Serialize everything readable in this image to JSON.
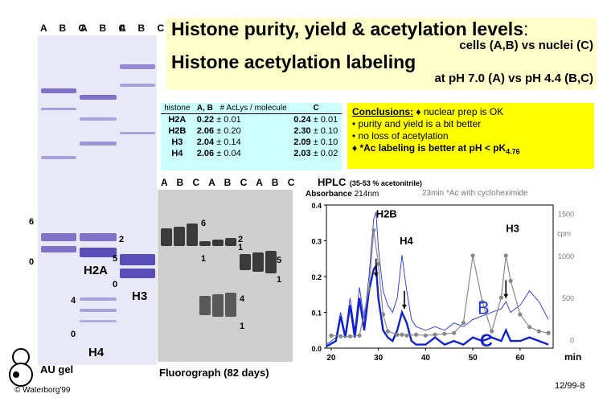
{
  "au_gel": {
    "lane_header_1": "A B C",
    "lane_header_2": "A B C",
    "lane_header_3": "A B C",
    "marks": [
      "6",
      "0",
      "2",
      "5",
      "0",
      "4",
      "0"
    ],
    "h2a": "H2A",
    "h3": "H3",
    "h4": "H4",
    "caption": "AU gel"
  },
  "copyright": "© Waterborg'99",
  "title": {
    "line1": "Histone purity, yield & acetylation levels",
    "colon": ":",
    "line2": "cells (A,B) vs nuclei (C)",
    "line3": "Histone acetylation labeling",
    "line4": "at pH 7.0 (A) vs pH 4.4 (B,C)"
  },
  "table": {
    "headers": [
      "histone",
      "A, B",
      "# AcLys / molecule",
      "C"
    ],
    "rows": [
      {
        "histone": "H2A",
        "ab": "0.22",
        "ab_err": "± 0.01",
        "c": "0.24",
        "c_err": "± 0.01"
      },
      {
        "histone": "H2B",
        "ab": "2.06",
        "ab_err": "± 0.20",
        "c": "2.30",
        "c_err": "± 0.10"
      },
      {
        "histone": "H3",
        "ab": "2.04",
        "ab_err": "± 0.14",
        "c": "2.09",
        "c_err": "± 0.10"
      },
      {
        "histone": "H4",
        "ab": "2.06",
        "ab_err": "± 0.04",
        "c": "2.03",
        "c_err": "± 0.02"
      }
    ]
  },
  "conclusions": {
    "heading": "Conclusions:",
    "lead": "♦  nuclear prep is OK",
    "items": [
      "•  purity and yield is a bit better",
      "•  no loss of acetylation",
      "♦  *Ac labeling is better at pH < pK"
    ],
    "subscript": "4.76"
  },
  "fluorograph": {
    "lane_header": "A B C A B C A B C",
    "marks": [
      "6",
      "2",
      "1",
      "1",
      "5",
      "1",
      "4",
      "1"
    ],
    "caption": "Fluorograph (82 days)"
  },
  "hplc": {
    "title": "HPLC",
    "subtitle": "(35-53 % acetonitrile)",
    "absorbance": "Absorbance",
    "nm": "214nm",
    "note": "23min *Ac with cycloheximide",
    "peak_h2b": "H2B",
    "peak_h4": "H4",
    "peak_h3": "H3",
    "curve_b": "B",
    "curve_c": "C",
    "unit_min": "min",
    "unit_cpm": "cpm",
    "y_ticks": [
      "0.4",
      "0.3",
      "0.2",
      "0.1",
      "0.0"
    ],
    "cpm_ticks": [
      "1500",
      "1000",
      "500",
      "0"
    ],
    "x_ticks": [
      "20",
      "30",
      "40",
      "50",
      "60"
    ]
  },
  "chart_data": {
    "type": "line",
    "xlabel": "min",
    "ylabel": "Absorbance 214nm",
    "xlim": [
      19,
      67
    ],
    "ylim": [
      0,
      0.4
    ],
    "y2lim": [
      -100,
      1600
    ],
    "series": [
      {
        "name": "B",
        "color": "#2233dd",
        "x": [
          19,
          21,
          22,
          23,
          24,
          25,
          26,
          27,
          28,
          29,
          29.5,
          30,
          31,
          32,
          33,
          34,
          35,
          36,
          37,
          38,
          40,
          42,
          44,
          46,
          48,
          50,
          52,
          54,
          56,
          57,
          58,
          60,
          62,
          64,
          66
        ],
        "y": [
          0.01,
          0.03,
          0.1,
          0.04,
          0.14,
          0.05,
          0.17,
          0.08,
          0.2,
          0.36,
          0.38,
          0.28,
          0.16,
          0.12,
          0.1,
          0.14,
          0.26,
          0.16,
          0.08,
          0.06,
          0.05,
          0.06,
          0.05,
          0.07,
          0.06,
          0.08,
          0.09,
          0.1,
          0.11,
          0.13,
          0.1,
          0.12,
          0.16,
          0.13,
          0.08
        ]
      },
      {
        "name": "C",
        "color": "#1122cc",
        "x": [
          19,
          21,
          22,
          23,
          24,
          25,
          26,
          27,
          28,
          29,
          29.5,
          30,
          31,
          32,
          33,
          34,
          35,
          36,
          37,
          38,
          40,
          42,
          44,
          46,
          48,
          50,
          52,
          54,
          56,
          57,
          58,
          60,
          62,
          64,
          66
        ],
        "y": [
          0.005,
          0.02,
          0.09,
          0.03,
          0.12,
          0.03,
          0.14,
          0.05,
          0.16,
          0.22,
          0.23,
          0.14,
          0.05,
          0.03,
          0.02,
          0.05,
          0.1,
          0.07,
          0.02,
          0.01,
          0.01,
          0.03,
          0.01,
          0.02,
          0.01,
          0.03,
          0.02,
          0.03,
          0.02,
          0.05,
          0.02,
          0.02,
          0.03,
          0.02,
          0.01
        ]
      },
      {
        "name": "cpm",
        "color": "#888888",
        "axis": "right",
        "x": [
          20,
          22,
          24,
          26,
          28,
          29,
          30,
          31,
          32,
          34,
          35,
          36,
          38,
          40,
          42,
          44,
          46,
          48,
          50,
          52,
          54,
          56,
          57,
          58,
          60,
          62,
          64,
          66
        ],
        "y": [
          50,
          40,
          40,
          50,
          600,
          1300,
          900,
          300,
          100,
          60,
          60,
          50,
          60,
          50,
          60,
          70,
          80,
          200,
          1000,
          450,
          100,
          500,
          1000,
          700,
          300,
          150,
          100,
          80
        ]
      }
    ]
  }
}
